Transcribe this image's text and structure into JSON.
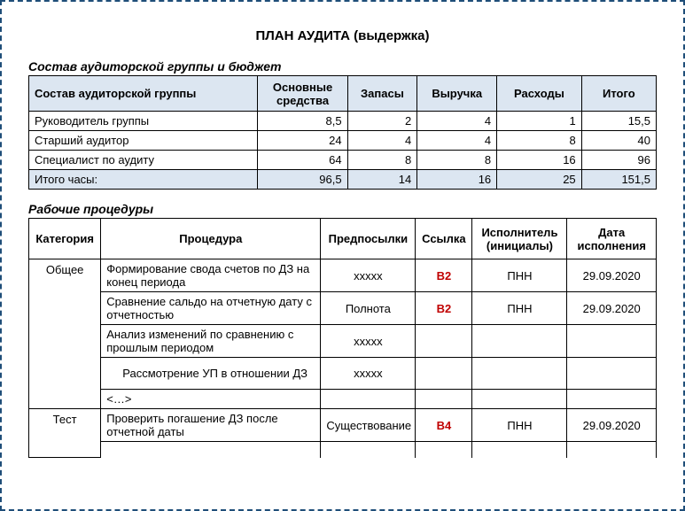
{
  "title": "ПЛАН АУДИТА (выдержка)",
  "section1_title": "Состав аудиторской группы и бюджет",
  "section2_title": "Рабочие процедуры",
  "table1": {
    "headers": {
      "group": "Состав аудиторской группы",
      "c1": "Основные средства",
      "c2": "Запасы",
      "c3": "Выручка",
      "c4": "Расходы",
      "c5": "Итого"
    },
    "rows": [
      {
        "label": "Руководитель группы",
        "c1": "8,5",
        "c2": "2",
        "c3": "4",
        "c4": "1",
        "c5": "15,5"
      },
      {
        "label": "Старший аудитор",
        "c1": "24",
        "c2": "4",
        "c3": "4",
        "c4": "8",
        "c5": "40"
      },
      {
        "label": "Специалист по аудиту",
        "c1": "64",
        "c2": "8",
        "c3": "8",
        "c4": "16",
        "c5": "96"
      }
    ],
    "total": {
      "label": "Итого часы:",
      "c1": "96,5",
      "c2": "14",
      "c3": "16",
      "c4": "25",
      "c5": "151,5"
    },
    "col_widths": [
      "230px",
      "90px",
      "70px",
      "80px",
      "85px",
      "75px"
    ]
  },
  "table2": {
    "headers": {
      "category": "Категория",
      "procedure": "Процедура",
      "premise": "Предпосылки",
      "link": "Ссылка",
      "performer": "Исполнитель (инициалы)",
      "date": "Дата исполнения"
    },
    "cat1": "Общее",
    "cat2": "Тест",
    "ell": "<…>",
    "rows": {
      "r1": {
        "proc": "Формирование свода счетов по ДЗ на конец периода",
        "premise": "ххххх",
        "link": "В2",
        "perf": "ПНН",
        "date": "29.09.2020"
      },
      "r2": {
        "proc": "Сравнение сальдо на отчетную дату с отчетностью",
        "premise": "Полнота",
        "link": "В2",
        "perf": "ПНН",
        "date": "29.09.2020"
      },
      "r3": {
        "proc": "Анализ изменений по сравнению с прошлым периодом",
        "premise": "ххххх",
        "link": "",
        "perf": "",
        "date": ""
      },
      "r4": {
        "proc": "Рассмотрение УП в отношении ДЗ",
        "premise": "ххххх",
        "link": "",
        "perf": "",
        "date": ""
      },
      "r6": {
        "proc": "Проверить погашение ДЗ после отчетной даты",
        "premise": "Существование",
        "link": "В4",
        "perf": "ПНН",
        "date": "29.09.2020"
      }
    },
    "col_widths": [
      "76px",
      "232px",
      "100px",
      "60px",
      "100px",
      "94px"
    ]
  },
  "colors": {
    "border_dashed": "#1f4e79",
    "header_bg": "#dce6f1",
    "link_red": "#c00000"
  }
}
